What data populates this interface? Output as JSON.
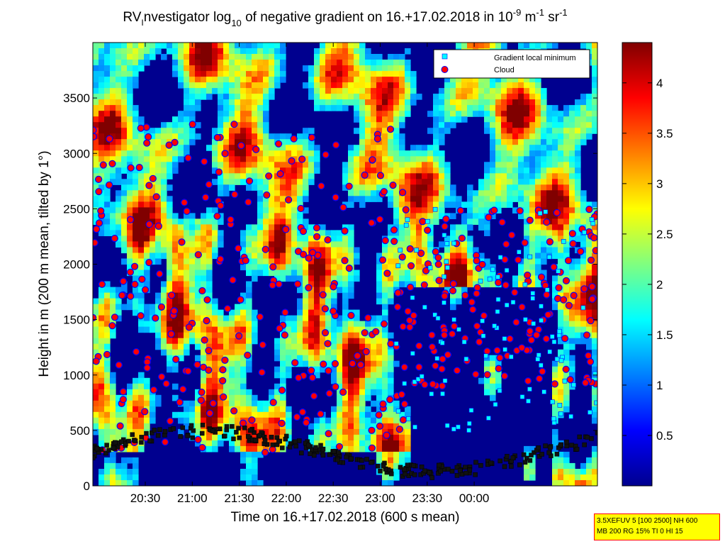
{
  "chart_data": {
    "type": "heatmap",
    "title": {
      "pre": "RV",
      "sub_i": "I",
      "mid": "nvestigator log",
      "sub_10": "10",
      "post": " of negative gradient on 16.+17.02.2018 in 10",
      "sup1": "-9",
      "unit_m": " m",
      "sup2": "-1",
      "unit_sr": " sr",
      "sup3": "-1"
    },
    "xlabel": "Time on 16.+17.02.2018 (600 s mean)",
    "ylabel": "Height in m (200 m mean, tilted by 1°)",
    "x_ticks": [
      "20:30",
      "21:00",
      "21:30",
      "22:00",
      "22:30",
      "23:00",
      "23:30",
      "00:00"
    ],
    "y_ticks": [
      "0",
      "500",
      "1000",
      "1500",
      "2000",
      "2500",
      "3000",
      "3500"
    ],
    "y_tick_values": [
      0,
      500,
      1000,
      1500,
      2000,
      2500,
      3000,
      3500
    ],
    "ylim": [
      0,
      4000
    ],
    "colorbar": {
      "ticks": [
        "0.5",
        "1",
        "1.5",
        "2",
        "2.5",
        "3",
        "3.5",
        "4"
      ],
      "tick_values": [
        0.5,
        1,
        1.5,
        2,
        2.5,
        3,
        3.5,
        4
      ],
      "range": [
        0,
        4.4
      ],
      "colormap": "jet"
    },
    "legend": {
      "position": "top-right",
      "items": [
        {
          "label": "Gradient local minimum",
          "marker": "square",
          "color": "#00ffff"
        },
        {
          "label": "Cloud",
          "marker": "circle",
          "color": "#ff0000"
        }
      ]
    },
    "series": [
      {
        "name": "Gradient local minimum",
        "marker": "square",
        "color": "#00ffff"
      },
      {
        "name": "Cloud",
        "marker": "circle",
        "color": "#ff0000"
      }
    ]
  },
  "info_box": {
    "line1": "3.5XEFUV 5 [100 2500] NH 600",
    "line2": "MB 200 RG 15% TI 0 HI 15"
  }
}
